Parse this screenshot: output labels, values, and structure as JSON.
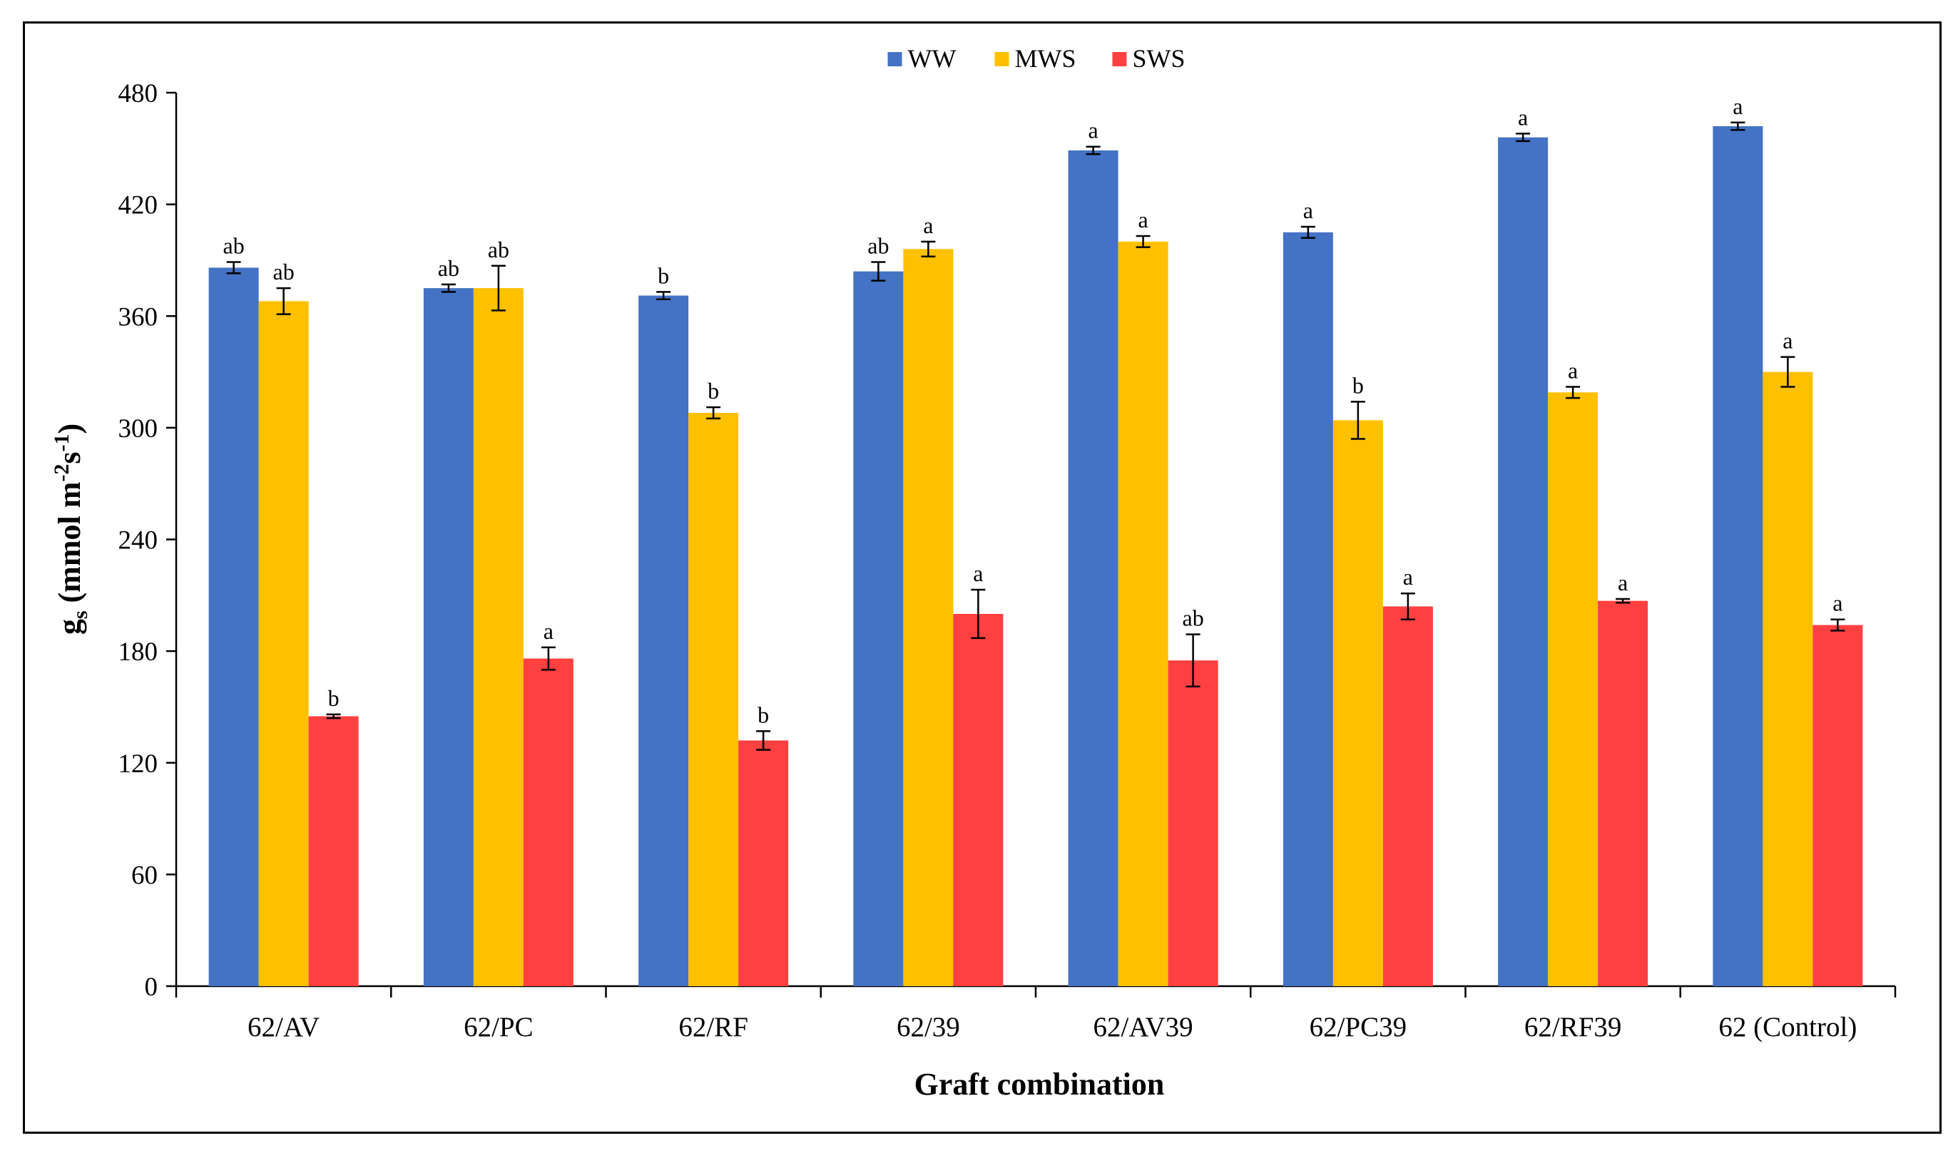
{
  "chart_data": {
    "type": "bar",
    "title": "",
    "xlabel": "Graft combination",
    "ylabel": {
      "symbol": "g",
      "symbol_sub": "s",
      "text": "(mmol m",
      "exp1": "-2",
      "mid": "s",
      "exp2": "-1",
      "close": ")"
    },
    "ylim": [
      0,
      480
    ],
    "yticks": [
      0,
      60,
      120,
      180,
      240,
      300,
      360,
      420,
      480
    ],
    "categories": [
      "62/AV",
      "62/PC",
      "62/RF",
      "62/39",
      "62/AV39",
      "62/PC39",
      "62/RF39",
      "62 (Control)"
    ],
    "legend_position": "top-center",
    "series": [
      {
        "name": "WW",
        "color": "#4472C4",
        "values": [
          386,
          375,
          371,
          384,
          449,
          405,
          456,
          462
        ],
        "errors": [
          3,
          2,
          2,
          5,
          2,
          3,
          2,
          2
        ],
        "labels": [
          "ab",
          "ab",
          "b",
          "ab",
          "a",
          "a",
          "a",
          "a"
        ]
      },
      {
        "name": "MWS",
        "color": "#FFC000",
        "values": [
          368,
          375,
          308,
          396,
          400,
          304,
          319,
          330
        ],
        "errors": [
          7,
          12,
          3,
          4,
          3,
          10,
          3,
          8
        ],
        "labels": [
          "ab",
          "ab",
          "b",
          "a",
          "a",
          "b",
          "a",
          "a"
        ]
      },
      {
        "name": "SWS",
        "color": "#FF4040",
        "values": [
          145,
          176,
          132,
          200,
          175,
          204,
          207,
          194
        ],
        "errors": [
          1,
          6,
          5,
          13,
          14,
          7,
          1,
          3
        ],
        "labels": [
          "b",
          "a",
          "b",
          "a",
          "ab",
          "a",
          "a",
          "a"
        ]
      }
    ]
  }
}
